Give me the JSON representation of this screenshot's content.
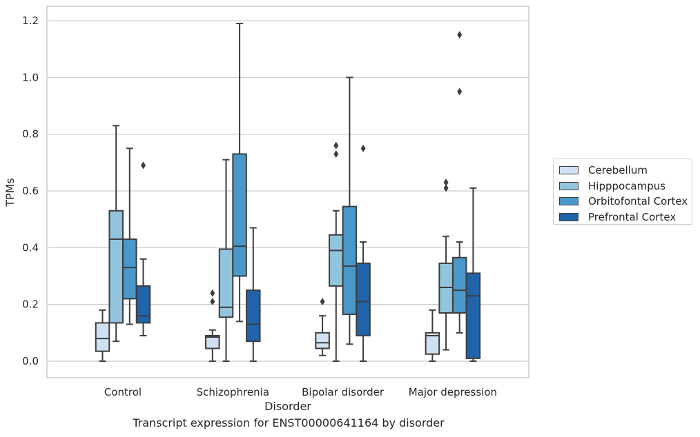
{
  "colors": {
    "Cerebellum": "#cfe1f2",
    "Hipppocampus": "#93c4de",
    "Orbitofontal Cortex": "#4a98c9",
    "Prefrontal Cortex": "#2163aa",
    "grid": "#cccccc",
    "edge": "#3d3d3d"
  },
  "caption": "Transcript expression for ENST00000641164 by disorder",
  "legend": {
    "placement": "right",
    "items": [
      "Cerebellum",
      "Hipppocampus",
      "Orbitofontal Cortex",
      "Prefrontal Cortex"
    ]
  },
  "chart_data": {
    "type": "box",
    "xlabel": "Disorder",
    "ylabel": "TPMs",
    "ylim": [
      -0.055,
      1.25
    ],
    "yticks": [
      "0.0",
      "0.2",
      "0.4",
      "0.6",
      "0.8",
      "1.0",
      "1.2"
    ],
    "grid": true,
    "categories": [
      "Control",
      "Schizophrenia",
      "Bipolar disorder",
      "Major depression"
    ],
    "series": [
      {
        "name": "Cerebellum",
        "boxes": [
          {
            "min": 0.0,
            "q1": 0.035,
            "median": 0.08,
            "q3": 0.135,
            "max": 0.18,
            "outliers": []
          },
          {
            "min": 0.0,
            "q1": 0.045,
            "median": 0.085,
            "q3": 0.09,
            "max": 0.11,
            "outliers": [
              0.21,
              0.24
            ]
          },
          {
            "min": 0.02,
            "q1": 0.045,
            "median": 0.065,
            "q3": 0.1,
            "max": 0.16,
            "outliers": [
              0.21
            ]
          },
          {
            "min": 0.0,
            "q1": 0.025,
            "median": 0.09,
            "q3": 0.1,
            "max": 0.18,
            "outliers": []
          }
        ]
      },
      {
        "name": "Hipppocampus",
        "boxes": [
          {
            "min": 0.07,
            "q1": 0.135,
            "median": 0.43,
            "q3": 0.53,
            "max": 0.83,
            "outliers": []
          },
          {
            "min": 0.0,
            "q1": 0.155,
            "median": 0.19,
            "q3": 0.395,
            "max": 0.71,
            "outliers": []
          },
          {
            "min": 0.0,
            "q1": 0.265,
            "median": 0.39,
            "q3": 0.445,
            "max": 0.53,
            "outliers": [
              0.73,
              0.76
            ]
          },
          {
            "min": 0.04,
            "q1": 0.17,
            "median": 0.26,
            "q3": 0.345,
            "max": 0.44,
            "outliers": [
              0.61,
              0.63
            ]
          }
        ]
      },
      {
        "name": "Orbitofontal Cortex",
        "boxes": [
          {
            "min": 0.13,
            "q1": 0.22,
            "median": 0.33,
            "q3": 0.43,
            "max": 0.75,
            "outliers": []
          },
          {
            "min": 0.14,
            "q1": 0.3,
            "median": 0.405,
            "q3": 0.73,
            "max": 1.19,
            "outliers": []
          },
          {
            "min": 0.06,
            "q1": 0.165,
            "median": 0.335,
            "q3": 0.545,
            "max": 1.0,
            "outliers": []
          },
          {
            "min": 0.1,
            "q1": 0.17,
            "median": 0.25,
            "q3": 0.365,
            "max": 0.42,
            "outliers": [
              0.95,
              1.15
            ]
          }
        ]
      },
      {
        "name": "Prefrontal Cortex",
        "boxes": [
          {
            "min": 0.09,
            "q1": 0.135,
            "median": 0.16,
            "q3": 0.265,
            "max": 0.36,
            "outliers": [
              0.69
            ]
          },
          {
            "min": 0.0,
            "q1": 0.07,
            "median": 0.13,
            "q3": 0.25,
            "max": 0.47,
            "outliers": []
          },
          {
            "min": 0.0,
            "q1": 0.09,
            "median": 0.21,
            "q3": 0.345,
            "max": 0.42,
            "outliers": [
              0.75
            ]
          },
          {
            "min": 0.0,
            "q1": 0.01,
            "median": 0.23,
            "q3": 0.31,
            "max": 0.61,
            "outliers": []
          }
        ]
      }
    ]
  }
}
